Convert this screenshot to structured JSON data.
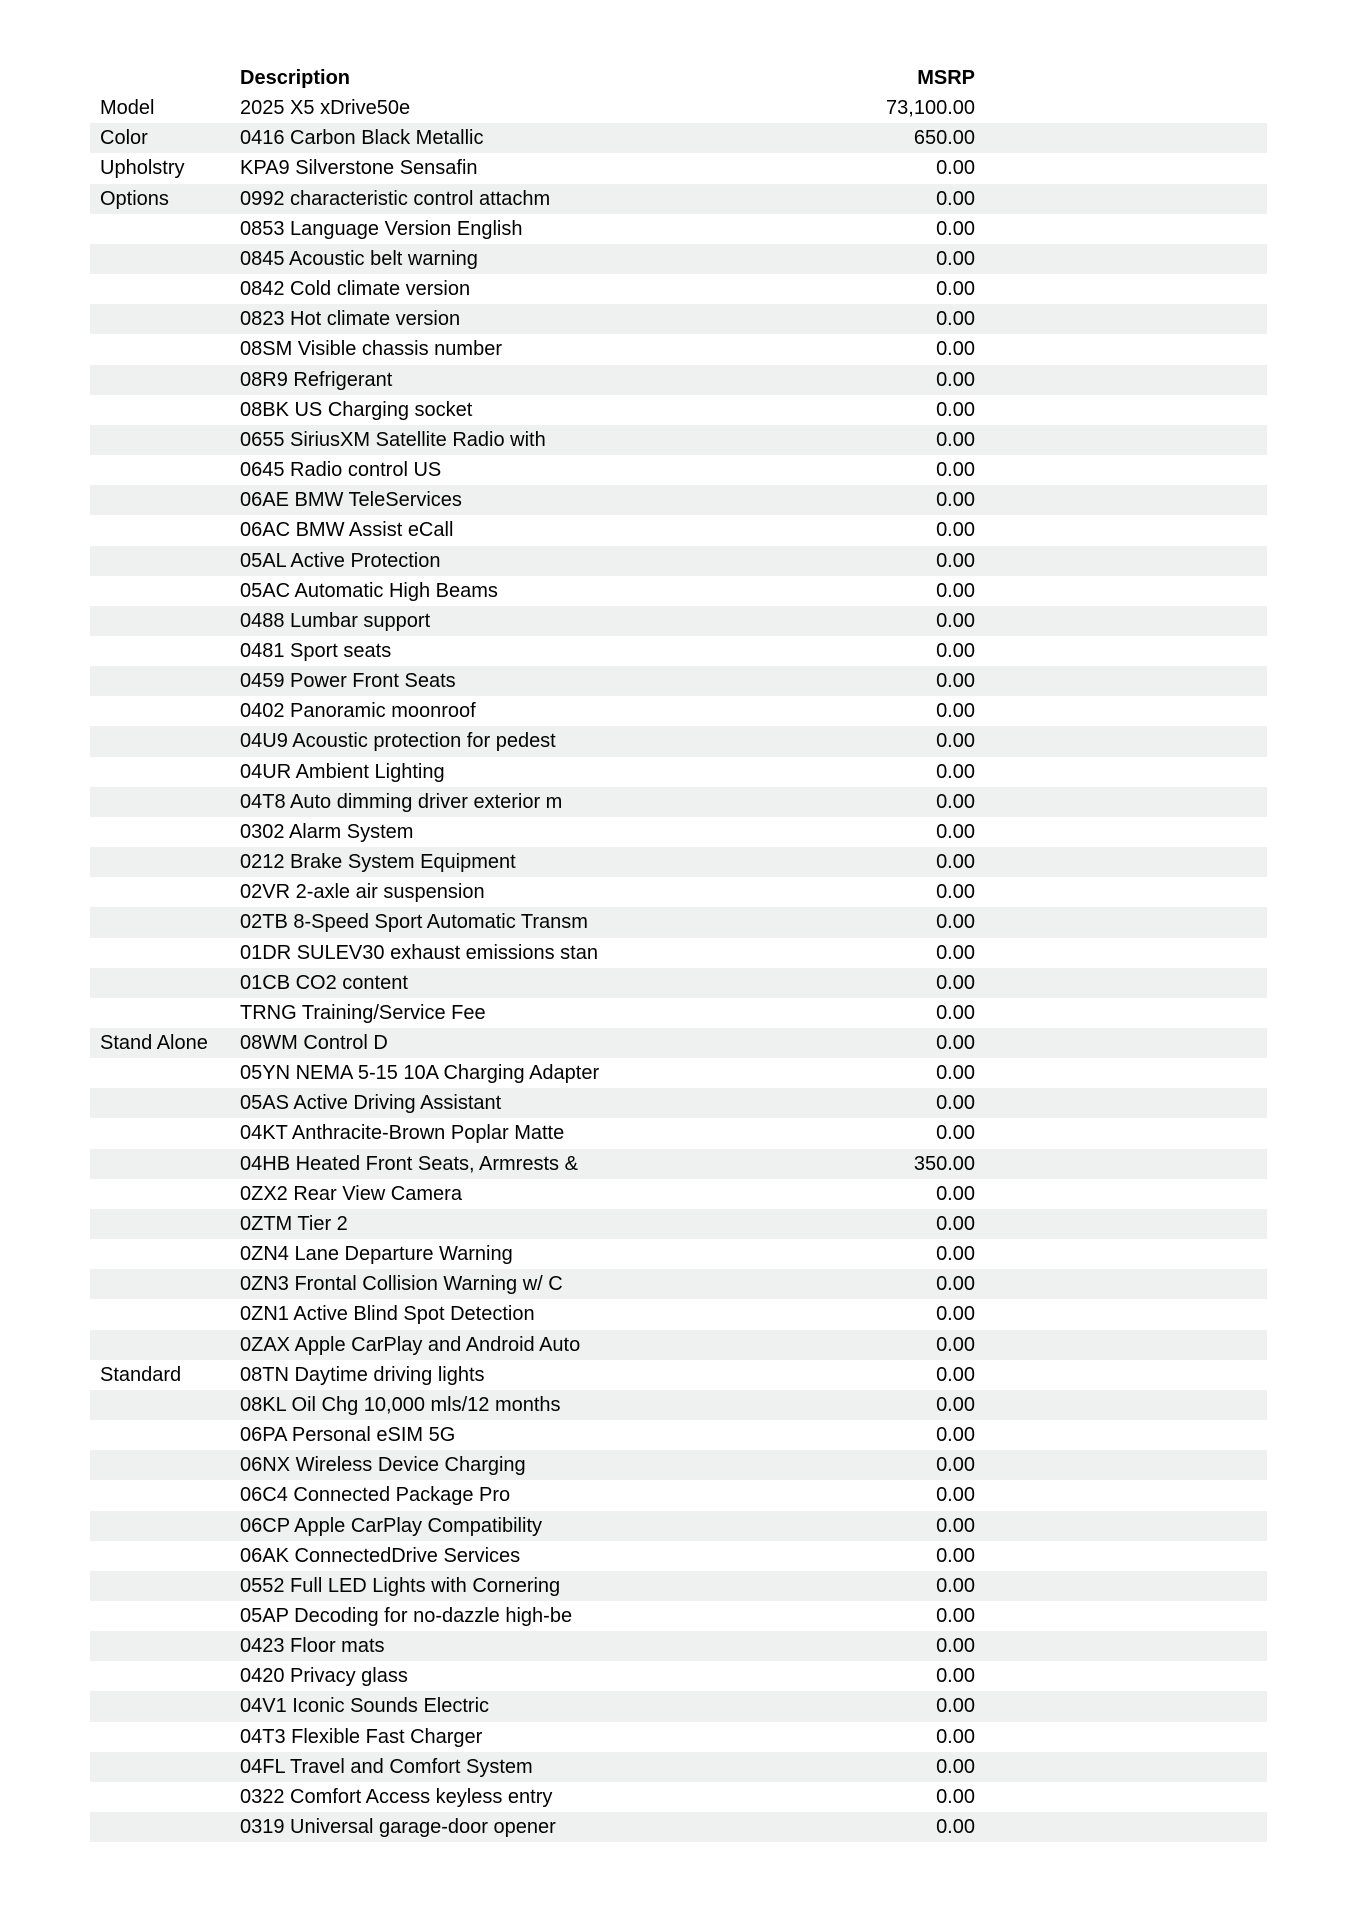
{
  "colors": {
    "background": "#ffffff",
    "stripe": "#eff1f1",
    "text": "#000000"
  },
  "table": {
    "header": {
      "category": "",
      "description": "Description",
      "msrp": "MSRP"
    },
    "rows": [
      {
        "category": "Model",
        "description": "2025 X5 xDrive50e",
        "msrp": "73,100.00"
      },
      {
        "category": "Color",
        "description": "0416 Carbon Black Metallic",
        "msrp": "650.00"
      },
      {
        "category": "Upholstry",
        "description": "KPA9 Silverstone Sensafin",
        "msrp": "0.00"
      },
      {
        "category": "Options",
        "description": "0992 characteristic control attachm",
        "msrp": "0.00"
      },
      {
        "category": "",
        "description": "0853 Language Version English",
        "msrp": "0.00"
      },
      {
        "category": "",
        "description": "0845 Acoustic belt warning",
        "msrp": "0.00"
      },
      {
        "category": "",
        "description": "0842 Cold climate version",
        "msrp": "0.00"
      },
      {
        "category": "",
        "description": "0823 Hot climate version",
        "msrp": "0.00"
      },
      {
        "category": "",
        "description": "08SM Visible chassis number",
        "msrp": "0.00"
      },
      {
        "category": "",
        "description": "08R9 Refrigerant",
        "msrp": "0.00"
      },
      {
        "category": "",
        "description": "08BK US Charging socket",
        "msrp": "0.00"
      },
      {
        "category": "",
        "description": "0655 SiriusXM Satellite Radio with",
        "msrp": "0.00"
      },
      {
        "category": "",
        "description": "0645 Radio control US",
        "msrp": "0.00"
      },
      {
        "category": "",
        "description": "06AE BMW TeleServices",
        "msrp": "0.00"
      },
      {
        "category": "",
        "description": "06AC BMW Assist eCall",
        "msrp": "0.00"
      },
      {
        "category": "",
        "description": "05AL Active Protection",
        "msrp": "0.00"
      },
      {
        "category": "",
        "description": "05AC Automatic High Beams",
        "msrp": "0.00"
      },
      {
        "category": "",
        "description": "0488 Lumbar support",
        "msrp": "0.00"
      },
      {
        "category": "",
        "description": "0481 Sport seats",
        "msrp": "0.00"
      },
      {
        "category": "",
        "description": "0459 Power Front Seats",
        "msrp": "0.00"
      },
      {
        "category": "",
        "description": "0402 Panoramic moonroof",
        "msrp": "0.00"
      },
      {
        "category": "",
        "description": "04U9 Acoustic protection for pedest",
        "msrp": "0.00"
      },
      {
        "category": "",
        "description": "04UR Ambient Lighting",
        "msrp": "0.00"
      },
      {
        "category": "",
        "description": "04T8 Auto dimming driver exterior m",
        "msrp": "0.00"
      },
      {
        "category": "",
        "description": "0302 Alarm System",
        "msrp": "0.00"
      },
      {
        "category": "",
        "description": "0212 Brake System Equipment",
        "msrp": "0.00"
      },
      {
        "category": "",
        "description": "02VR 2-axle air suspension",
        "msrp": "0.00"
      },
      {
        "category": "",
        "description": "02TB 8-Speed Sport Automatic Transm",
        "msrp": "0.00"
      },
      {
        "category": "",
        "description": "01DR SULEV30 exhaust emissions stan",
        "msrp": "0.00"
      },
      {
        "category": "",
        "description": "01CB CO2 content",
        "msrp": "0.00"
      },
      {
        "category": "",
        "description": "TRNG Training/Service Fee",
        "msrp": "0.00"
      },
      {
        "category": "Stand Alone",
        "description": "08WM Control D",
        "msrp": "0.00"
      },
      {
        "category": "",
        "description": "05YN NEMA 5-15 10A Charging Adapter",
        "msrp": "0.00"
      },
      {
        "category": "",
        "description": "05AS Active Driving Assistant",
        "msrp": "0.00"
      },
      {
        "category": "",
        "description": "04KT Anthracite-Brown Poplar Matte",
        "msrp": "0.00"
      },
      {
        "category": "",
        "description": "04HB Heated Front Seats, Armrests &",
        "msrp": "350.00"
      },
      {
        "category": "",
        "description": "0ZX2 Rear View Camera",
        "msrp": "0.00"
      },
      {
        "category": "",
        "description": "0ZTM Tier 2",
        "msrp": "0.00"
      },
      {
        "category": "",
        "description": "0ZN4 Lane Departure Warning",
        "msrp": "0.00"
      },
      {
        "category": "",
        "description": "0ZN3 Frontal Collision Warning w/ C",
        "msrp": "0.00"
      },
      {
        "category": "",
        "description": "0ZN1 Active Blind Spot Detection",
        "msrp": "0.00"
      },
      {
        "category": "",
        "description": "0ZAX Apple CarPlay and Android Auto",
        "msrp": "0.00"
      },
      {
        "category": "Standard",
        "description": "08TN Daytime driving lights",
        "msrp": "0.00"
      },
      {
        "category": "",
        "description": "08KL Oil Chg 10,000 mls/12 months",
        "msrp": "0.00"
      },
      {
        "category": "",
        "description": "06PA Personal eSIM 5G",
        "msrp": "0.00"
      },
      {
        "category": "",
        "description": "06NX Wireless Device Charging",
        "msrp": "0.00"
      },
      {
        "category": "",
        "description": "06C4 Connected Package Pro",
        "msrp": "0.00"
      },
      {
        "category": "",
        "description": "06CP Apple CarPlay Compatibility",
        "msrp": "0.00"
      },
      {
        "category": "",
        "description": "06AK ConnectedDrive Services",
        "msrp": "0.00"
      },
      {
        "category": "",
        "description": "0552 Full LED Lights with Cornering",
        "msrp": "0.00"
      },
      {
        "category": "",
        "description": "05AP Decoding for no-dazzle high-be",
        "msrp": "0.00"
      },
      {
        "category": "",
        "description": "0423 Floor mats",
        "msrp": "0.00"
      },
      {
        "category": "",
        "description": "0420 Privacy glass",
        "msrp": "0.00"
      },
      {
        "category": "",
        "description": "04V1 Iconic Sounds Electric",
        "msrp": "0.00"
      },
      {
        "category": "",
        "description": "04T3 Flexible Fast Charger",
        "msrp": "0.00"
      },
      {
        "category": "",
        "description": "04FL Travel and Comfort System",
        "msrp": "0.00"
      },
      {
        "category": "",
        "description": "0322 Comfort Access keyless entry",
        "msrp": "0.00"
      },
      {
        "category": "",
        "description": "0319 Universal garage-door opener",
        "msrp": "0.00"
      }
    ]
  }
}
